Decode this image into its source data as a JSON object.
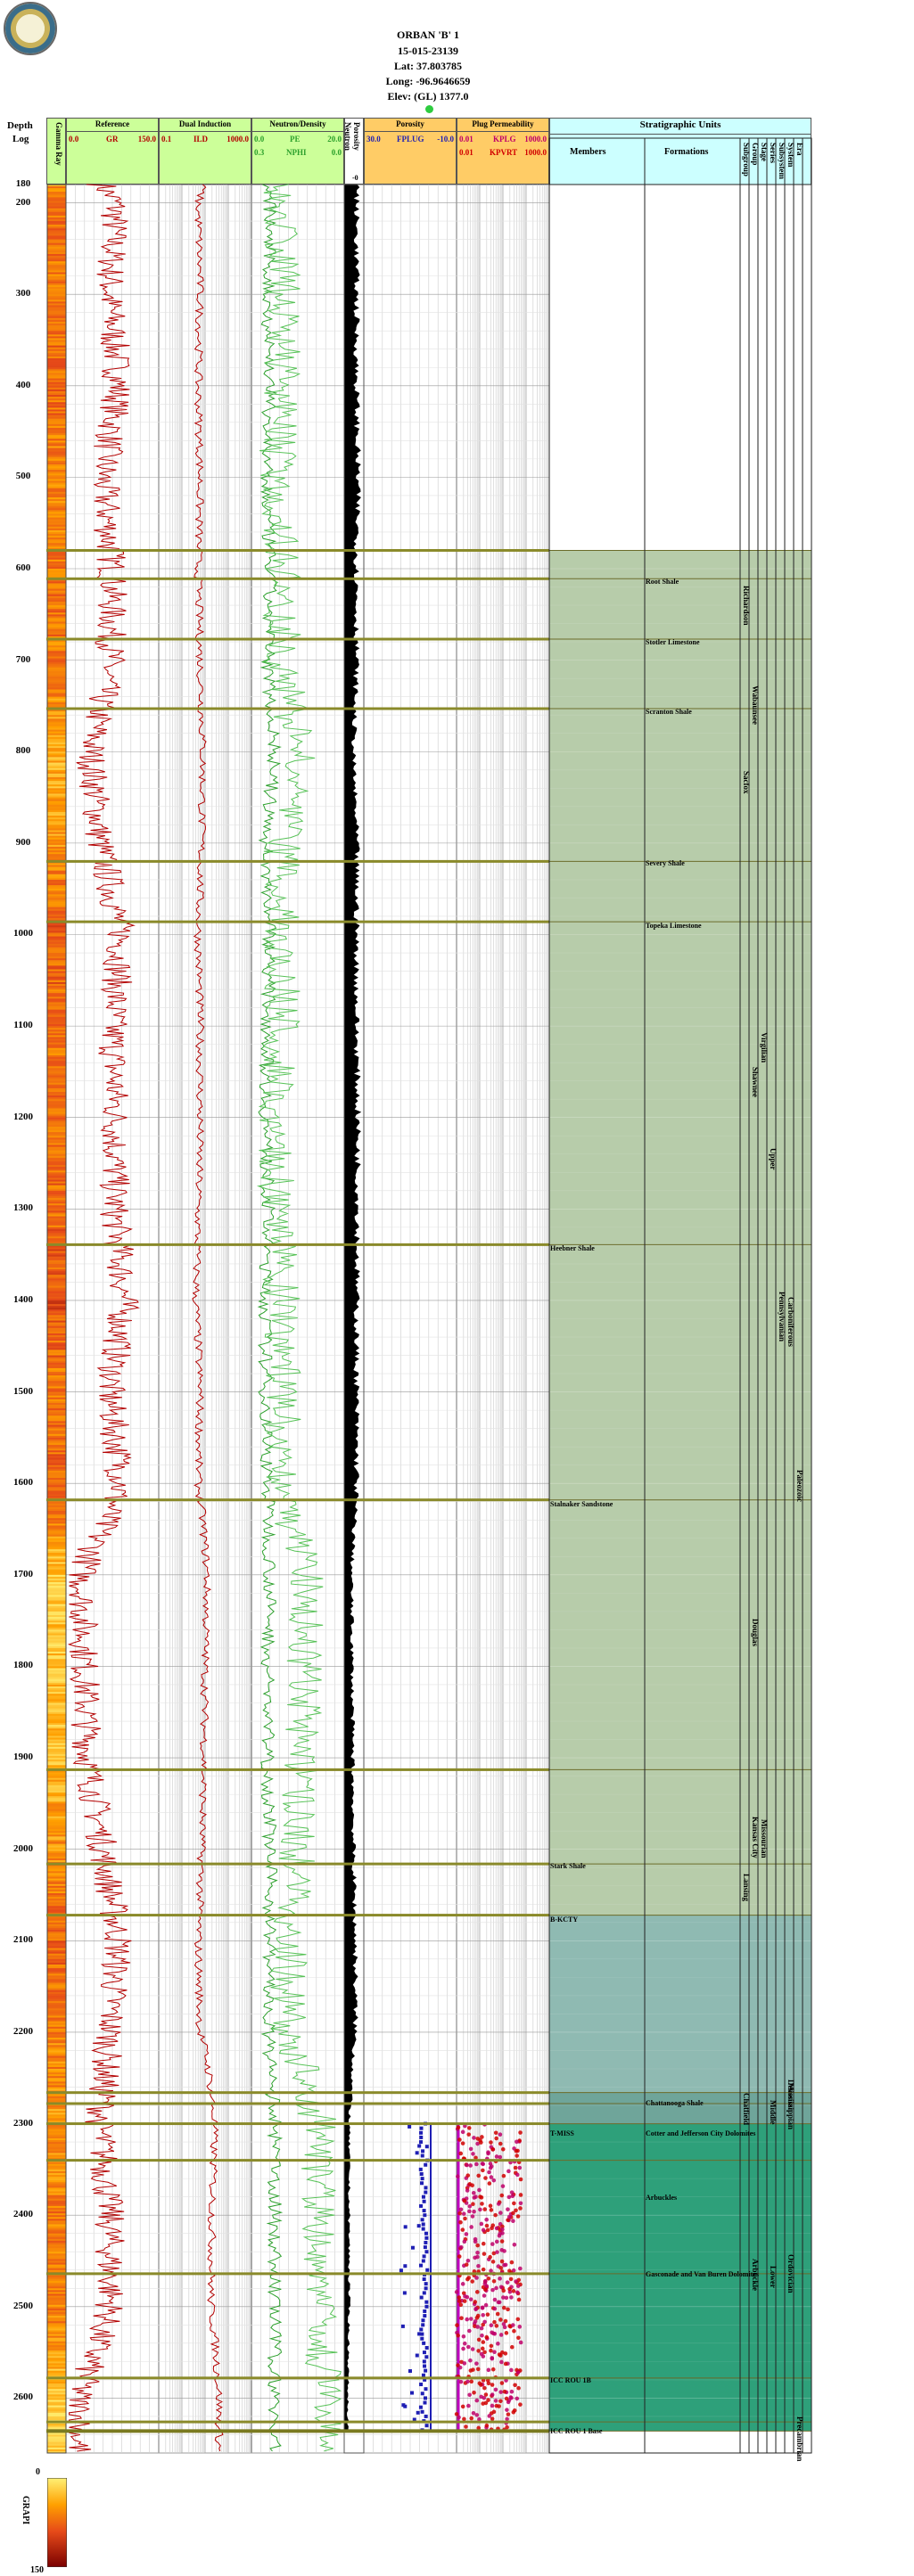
{
  "header": {
    "lines": [
      "ORBAN 'B' 1",
      "15-015-23139",
      "Lat: 37.803785",
      "Long: -96.9646659",
      "Elev: (GL) 1377.0"
    ]
  },
  "depth_column": {
    "title_lines": [
      "Depth",
      "Log"
    ],
    "labels": [
      "180",
      "200",
      "300",
      "400",
      "500",
      "600",
      "700",
      "800",
      "900",
      "1000",
      "1100",
      "1200",
      "1300",
      "1400",
      "1500",
      "1600",
      "1700",
      "1800",
      "1900",
      "2000",
      "2100",
      "2200",
      "2300",
      "2400",
      "2500",
      "2600"
    ]
  },
  "tracks": {
    "gamma": {
      "title": "Gamma Ray"
    },
    "reference": {
      "title": "Reference",
      "scale_left": "0.0",
      "curve": "GR",
      "scale_right": "150.0"
    },
    "induction": {
      "title": "Dual Induction",
      "scale_left": "0.1",
      "curve": "ILD",
      "scale_right": "1000.0"
    },
    "neutron": {
      "title": "Neutron/Density",
      "row1_left": "0.0",
      "row1_curve": "PE",
      "row1_right": "20.0",
      "row2_left": "0.3",
      "row2_curve": "NPHI",
      "row2_right": "0.0"
    },
    "poros_col": {
      "title_lines": [
        "Porosity",
        "Neutron"
      ],
      "bottom": "-0"
    },
    "porosity": {
      "title": "Porosity",
      "scale_left": "30.0",
      "curve": "FPLUG",
      "scale_right": "-10.0"
    },
    "permeability": {
      "title": "Plug Permeability",
      "row1_left": "0.01",
      "row1_curve": "KPLG",
      "row1_right": "1000.0",
      "row2_left": "0.01",
      "row2_curve": "KPVRT",
      "row2_right": "1000.0"
    },
    "strat": {
      "title": "Stratigraphic Units",
      "members": "Members",
      "formations": "Formations",
      "rank_headers": [
        "Subgroup",
        "Group",
        "Stage",
        "Series",
        "Subsystem",
        "System",
        "Era"
      ]
    }
  },
  "formations": [
    {
      "name": "Root Shale",
      "depth": 614
    },
    {
      "name": "Stotler Limestone",
      "depth": 680
    },
    {
      "name": "Scranton Shale",
      "depth": 756
    },
    {
      "name": "Severy Shale",
      "depth": 922
    },
    {
      "name": "Topeka Limestone",
      "depth": 990
    },
    {
      "name": "Chattanooga Shale",
      "depth": 2277
    },
    {
      "name": "Cotter and Jefferson City Dolomites",
      "depth": 2310
    },
    {
      "name": "Arbuckles",
      "depth": 2380
    },
    {
      "name": "Gasconade and Van Buren Dolomites",
      "depth": 2464
    }
  ],
  "members": [
    {
      "name": "Heebner Shale",
      "depth": 1343
    },
    {
      "name": "Stalnaker Sandstone",
      "depth": 1622
    },
    {
      "name": "Stark Shale",
      "depth": 2018
    },
    {
      "name": "B-KCTY",
      "depth": 2076
    },
    {
      "name": "T-MISS",
      "depth": 2310
    },
    {
      "name": "ICC ROU 1B",
      "depth": 2580
    },
    {
      "name": "ICC ROU 1 Base",
      "depth": 2636
    }
  ],
  "tops_depths": [
    580,
    611,
    677,
    753,
    920,
    986,
    1339,
    1618,
    1913,
    2016,
    2072,
    2266,
    2278,
    2300,
    2340,
    2464,
    2578,
    2626,
    2636
  ],
  "units": [
    {
      "name": "Richardson",
      "rank": "Subgroup",
      "top": 611,
      "base": 677
    },
    {
      "name": "Wabaunsee",
      "rank": "Group",
      "top": 580,
      "base": 920
    },
    {
      "name": "Sacfox",
      "rank": "Subgroup",
      "top": 753,
      "base": 920
    },
    {
      "name": "Virgilian",
      "rank": "Stage",
      "top": 920,
      "base": 1339
    },
    {
      "name": "Shawnee",
      "rank": "Group",
      "top": 986,
      "base": 1339
    },
    {
      "name": "Upper",
      "rank": "Series",
      "top": 580,
      "base": 1913
    },
    {
      "name": "Pennsylvanian",
      "rank": "Subsystem",
      "top": 580,
      "base": 2266
    },
    {
      "name": "Carboniferous",
      "rank": "System",
      "top": 580,
      "base": 2278
    },
    {
      "name": "Paleozoic",
      "rank": "Era",
      "top": 580,
      "base": 2636
    },
    {
      "name": "Douglas",
      "rank": "Group",
      "top": 1618,
      "base": 1913
    },
    {
      "name": "Missourian",
      "rank": "Stage",
      "top": 1913,
      "base": 2072
    },
    {
      "name": "Kansas City",
      "rank": "Group",
      "top": 1913,
      "base": 2072
    },
    {
      "name": "Lansing",
      "rank": "Subgroup",
      "top": 2016,
      "base": 2072
    },
    {
      "name": "Devonian",
      "rank": "System",
      "top": 2266,
      "base": 2278
    },
    {
      "name": "Mississippian",
      "rank": "System",
      "top": 2278,
      "base": 2300
    },
    {
      "name": "Middle",
      "rank": "Series",
      "top": 2278,
      "base": 2300
    },
    {
      "name": "Lower",
      "rank": "Series",
      "top": 2300,
      "base": 2636
    },
    {
      "name": "Ordovician",
      "rank": "System",
      "top": 2300,
      "base": 2636
    },
    {
      "name": "Chatfield",
      "rank": "Subgroup",
      "top": 2278,
      "base": 2300
    },
    {
      "name": "Arbuckle",
      "rank": "Group",
      "top": 2300,
      "base": 2636
    },
    {
      "name": "Precambrian",
      "rank": "Era",
      "top": 2636,
      "base": 2660
    }
  ],
  "colorbar": {
    "title": "GRAPI",
    "min": "0",
    "max": "150"
  },
  "colors": {
    "gr": "#b30000",
    "pe": "#2ca02c",
    "npphi": "#2ca02c",
    "ild": "#b30000",
    "fplug": "#1f1fb4",
    "kplg": "#c0006a",
    "kpvrt": "#d10000",
    "formline": "#8a8a2a",
    "strat_green": "#b7ccaa",
    "strat_teal": "#8fbab2",
    "strat_deep": "#2ea07a",
    "header_green": "#ccff99",
    "header_orange": "#ffcc66",
    "header_cyan": "#ccffff"
  },
  "chart_data": {
    "type": "line",
    "title": "",
    "xlabel": "",
    "ylabel": "Depth",
    "ylim": [
      180,
      2660
    ],
    "depths": [
      180,
      200,
      300,
      400,
      500,
      600,
      700,
      800,
      900,
      1000,
      1100,
      1200,
      1300,
      1400,
      1500,
      1600,
      1700,
      1800,
      1900,
      2000,
      2100,
      2200,
      2300,
      2400,
      2500,
      2600
    ],
    "series": [
      {
        "name": "GR",
        "values": [
          58,
          80,
          70,
          85,
          60,
          75,
          72,
          40,
          55,
          90,
          75,
          80,
          78,
          95,
          70,
          90,
          25,
          30,
          35,
          60,
          85,
          70,
          55,
          70,
          72,
          20
        ]
      },
      {
        "name": "ILD",
        "values": [
          8,
          5,
          6,
          5,
          6,
          5,
          6,
          8,
          7,
          5,
          6,
          6,
          5,
          4,
          6,
          5,
          12,
          10,
          9,
          7,
          5,
          6,
          25,
          20,
          18,
          40
        ]
      },
      {
        "name": "PE",
        "values": [
          2.5,
          4,
          3.5,
          4,
          3,
          4,
          3.5,
          5,
          3,
          4,
          3.5,
          3,
          3.5,
          3,
          3,
          3.5,
          4,
          3.5,
          3.5,
          4,
          4,
          3.5,
          5,
          5,
          5,
          5
        ]
      },
      {
        "name": "NPHI",
        "values": [
          0.22,
          0.2,
          0.2,
          0.2,
          0.22,
          0.2,
          0.2,
          0.15,
          0.2,
          0.2,
          0.2,
          0.22,
          0.22,
          0.2,
          0.2,
          0.2,
          0.12,
          0.13,
          0.14,
          0.15,
          0.18,
          0.18,
          0.08,
          0.08,
          0.08,
          0.06
        ]
      },
      {
        "name": "FPLUG",
        "values": [
          null,
          null,
          null,
          null,
          null,
          null,
          null,
          null,
          null,
          null,
          null,
          null,
          null,
          null,
          null,
          null,
          null,
          null,
          null,
          null,
          null,
          null,
          5,
          5,
          4,
          4
        ]
      },
      {
        "name": "KPLG",
        "values": [
          null,
          null,
          null,
          null,
          null,
          null,
          null,
          null,
          null,
          null,
          null,
          null,
          null,
          null,
          null,
          null,
          null,
          null,
          null,
          null,
          null,
          null,
          1,
          5,
          10,
          20
        ]
      }
    ]
  }
}
